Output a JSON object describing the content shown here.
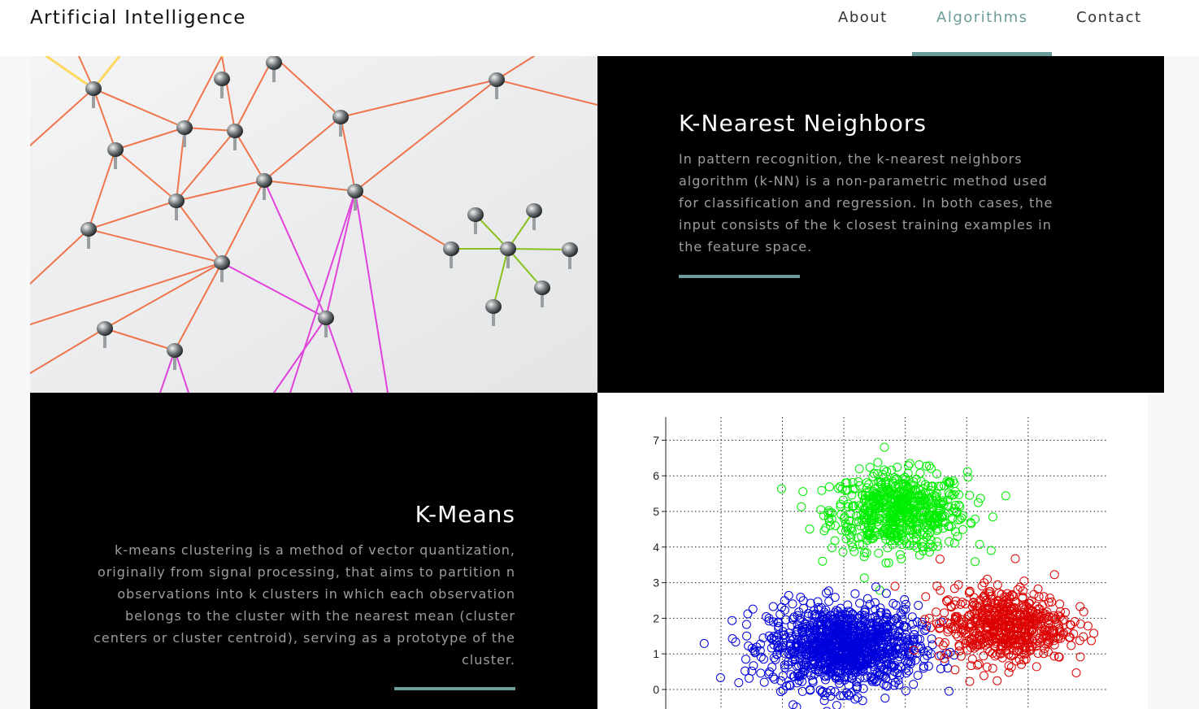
{
  "navbar": {
    "brand": "Artificial Intelligence",
    "items": [
      {
        "label": "About",
        "active": false
      },
      {
        "label": "Algorithms",
        "active": true
      },
      {
        "label": "Contact",
        "active": false
      }
    ]
  },
  "colors": {
    "accent": "#6a9c9b",
    "card_background": "#000000",
    "card_text": "#9d9d9d"
  },
  "sections": {
    "knn": {
      "title": "K-Nearest Neighbors",
      "text": "In pattern recognition, the k-nearest neighbors algorithm (k-NN) is a non-parametric method used for classification and regression. In both cases, the input consists of the k closest training examples in the feature space."
    },
    "kmeans": {
      "title": "K-Means",
      "text": "k-means clustering is a method of vector quantization, originally from signal processing, that aims to partition n observations into k clusters in which each observation belongs to the cluster with the nearest mean (cluster centers or cluster centroid), serving as a prototype of the cluster."
    }
  },
  "chart_data": {
    "type": "scatter",
    "title": "",
    "xlabel": "",
    "ylabel": "",
    "ytick_labels": [
      "0",
      "1",
      "2",
      "3",
      "4",
      "5",
      "6",
      "7"
    ],
    "ylim": [
      -0.3,
      7.6
    ],
    "grid": true,
    "marker": "open-circle",
    "series": [
      {
        "color": "#00ee00",
        "center": [
          1.9,
          5.0
        ],
        "spread": [
          1.0,
          1.0
        ],
        "count": 650
      },
      {
        "color": "#0000dd",
        "center": [
          1.0,
          1.2
        ],
        "spread": [
          1.1,
          1.05
        ],
        "count": 1150
      },
      {
        "color": "#dd0000",
        "center": [
          3.6,
          1.8
        ],
        "spread": [
          0.95,
          0.95
        ],
        "count": 600
      }
    ]
  }
}
